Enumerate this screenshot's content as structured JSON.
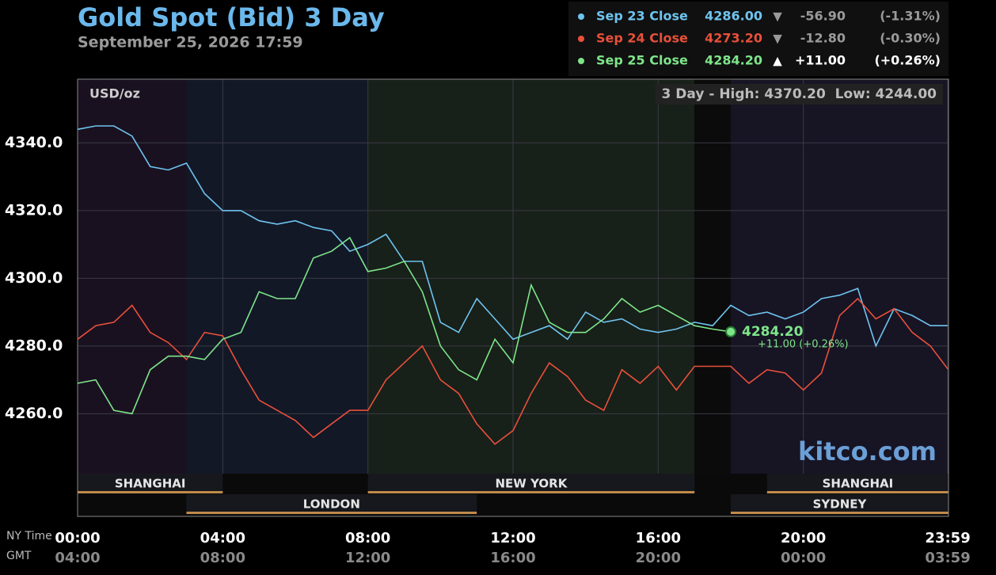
{
  "chart_data": {
    "type": "line",
    "title": "Gold Spot (Bid) 3 Day",
    "subtitle": "September 25, 2026 17:59",
    "unit_label": "USD/oz",
    "range_label": "3 Day - High: 4370.20  Low: 4244.00",
    "watermark": "kitco.com",
    "x_axis_label": "NY Time",
    "x2_axis_label": "GMT",
    "x": [
      0,
      0.5,
      1,
      1.5,
      2,
      2.5,
      3,
      3.5,
      4,
      4.5,
      5,
      5.5,
      6,
      6.5,
      7,
      7.5,
      8,
      8.5,
      9,
      9.5,
      10,
      10.5,
      11,
      11.5,
      12,
      12.5,
      13,
      13.5,
      14,
      14.5,
      15,
      15.5,
      16,
      16.5,
      17,
      17.5,
      18,
      18.5,
      19,
      19.5,
      20,
      20.5,
      21,
      21.5,
      22,
      22.5,
      23,
      23.5,
      23.98
    ],
    "xlim": [
      0,
      24
    ],
    "xticks": [
      {
        "value": 0,
        "label": "00:00"
      },
      {
        "value": 4,
        "label": "04:00"
      },
      {
        "value": 8,
        "label": "08:00"
      },
      {
        "value": 12,
        "label": "12:00"
      },
      {
        "value": 16,
        "label": "16:00"
      },
      {
        "value": 20,
        "label": "20:00"
      },
      {
        "value": 23.98,
        "label": "23:59"
      }
    ],
    "gmt_labels": [
      "04:00",
      "08:00",
      "12:00",
      "16:00",
      "20:00",
      "00:00",
      "03:59"
    ],
    "ylim": [
      4242.3,
      4358.8
    ],
    "yticks": [
      {
        "value": 4260,
        "label": "4260.0"
      },
      {
        "value": 4280,
        "label": "4280.0"
      },
      {
        "value": 4300,
        "label": "4300.0"
      },
      {
        "value": 4320,
        "label": "4320.0"
      },
      {
        "value": 4340,
        "label": "4340.0"
      }
    ],
    "grid": true,
    "shading": [
      {
        "start": 0,
        "end": 3,
        "color": "#1a1120"
      },
      {
        "start": 3,
        "end": 8,
        "color": "#131827"
      },
      {
        "start": 8,
        "end": 17,
        "color": "#18201a"
      },
      {
        "start": 17,
        "end": 18,
        "color": "#0b0b0b"
      },
      {
        "start": 18,
        "end": 24,
        "color": "#171424"
      }
    ],
    "sessions": [
      {
        "name": "SHANGHAI",
        "start": 0,
        "end": 4,
        "row": 0
      },
      {
        "name": "NEW YORK",
        "start": 8,
        "end": 17,
        "row": 0
      },
      {
        "name": "SHANGHAI",
        "start": 19,
        "end": 24,
        "row": 0
      },
      {
        "name": "LONDON",
        "start": 3,
        "end": 11,
        "row": 1
      },
      {
        "name": "SYDNEY",
        "start": 18,
        "end": 24,
        "row": 1
      }
    ],
    "series": [
      {
        "name": "Sep 23 Close",
        "color": "#6ec4ef",
        "close": "4286.00",
        "arrow": "▼",
        "change": "-56.90",
        "pct": "(-1.31%)",
        "text_color": "#9a9a9a",
        "values": [
          4344,
          4345,
          4345,
          4342,
          4333,
          4332,
          4334,
          4325,
          4320,
          4320,
          4317,
          4316,
          4317,
          4315,
          4314,
          4308,
          4310,
          4313,
          4305,
          4305,
          4287,
          4284,
          4294,
          4288,
          4282,
          4284,
          4286,
          4282,
          4290,
          4287,
          4288,
          4285,
          4284,
          4285,
          4287,
          4286,
          4292,
          4289,
          4290,
          4288,
          4290,
          4294,
          4295,
          4297,
          4280,
          4291,
          4289,
          4286,
          4286
        ]
      },
      {
        "name": "Sep 24 Close",
        "color": "#e8503a",
        "close": "4273.20",
        "arrow": "▼",
        "change": "-12.80",
        "pct": "(-0.30%)",
        "text_color": "#9a9a9a",
        "values": [
          4282,
          4286,
          4287,
          4292,
          4284,
          4281,
          4276,
          4284,
          4283,
          4273,
          4264,
          4261,
          4258,
          4253,
          4257,
          4261,
          4261,
          4270,
          4275,
          4280,
          4270,
          4266,
          4257,
          4251,
          4255,
          4266,
          4275,
          4271,
          4264,
          4261,
          4273,
          4269,
          4274,
          4267,
          4274,
          4274,
          4274,
          4269,
          4273,
          4272,
          4267,
          4272,
          4289,
          4294,
          4288,
          4291,
          4284,
          4280,
          4273.2
        ]
      },
      {
        "name": "Sep 25 Close",
        "color": "#7ee58a",
        "close": "4284.20",
        "arrow": "▲",
        "change": "+11.00",
        "pct": "(+0.26%)",
        "text_color": "#ffffff",
        "values": [
          4269,
          4270,
          4261,
          4260,
          4273,
          4277,
          4277,
          4276,
          4282,
          4284,
          4296,
          4294,
          4294,
          4306,
          4308,
          4312,
          4302,
          4303,
          4305,
          4296,
          4280,
          4273,
          4270,
          4282,
          4275,
          4298,
          4287,
          4284,
          4284,
          4288,
          4294,
          4290,
          4292,
          4289,
          4286,
          4285,
          4284.2,
          null,
          null,
          null,
          null,
          null,
          null,
          null,
          null,
          null,
          null,
          null,
          null
        ]
      }
    ],
    "last_label": "4284.20",
    "last_change_label": "+11.00 (+0.26%)"
  }
}
